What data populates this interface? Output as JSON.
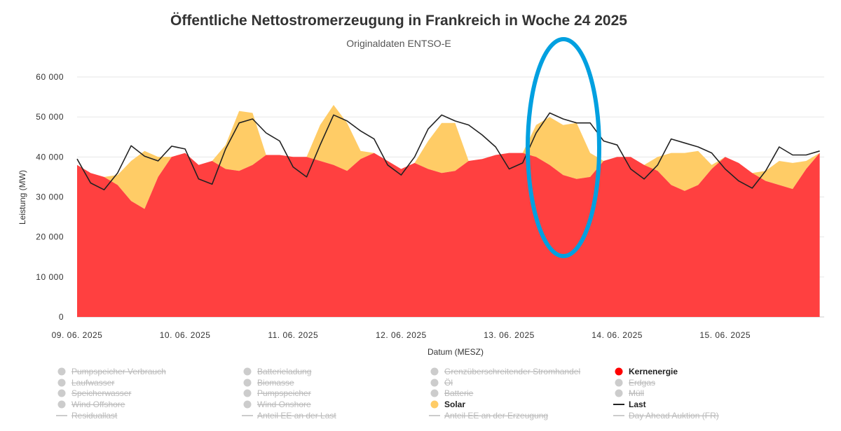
{
  "chart_data": {
    "type": "area",
    "title": "Öffentliche Nettostromerzeugung in Frankreich in Woche 24 2025",
    "subtitle": "Originaldaten ENTSO-E",
    "xlabel": "Datum (MESZ)",
    "ylabel": "Leistung (MW)",
    "ylim": [
      0,
      60000
    ],
    "yticks": [
      0,
      10000,
      20000,
      30000,
      40000,
      50000,
      60000
    ],
    "ytick_labels": [
      "0",
      "10 000",
      "20 000",
      "30 000",
      "40 000",
      "50 000",
      "60 000"
    ],
    "xlim": [
      0,
      166
    ],
    "x_unit": "hours since 09.06.2025 00:00",
    "xticks": [
      0,
      24,
      48,
      72,
      96,
      120,
      144
    ],
    "xtick_labels": [
      "09. 06. 2025",
      "10. 06. 2025",
      "11. 06. 2025",
      "12. 06. 2025",
      "13. 06. 2025",
      "14. 06. 2025",
      "15. 06. 2025"
    ],
    "grid": true,
    "legend_position": "bottom",
    "x": [
      0,
      3,
      6,
      9,
      12,
      15,
      18,
      21,
      24,
      27,
      30,
      33,
      36,
      39,
      42,
      45,
      48,
      51,
      54,
      57,
      60,
      63,
      66,
      69,
      72,
      75,
      78,
      81,
      84,
      87,
      90,
      93,
      96,
      99,
      102,
      105,
      108,
      111,
      114,
      117,
      120,
      123,
      126,
      129,
      132,
      135,
      138,
      141,
      144,
      147,
      150,
      153,
      156,
      159,
      162,
      165
    ],
    "series": [
      {
        "name": "Kernenergie",
        "color": "#ff0000",
        "values": [
          38000,
          36000,
          35000,
          33000,
          29000,
          27000,
          35000,
          40000,
          41000,
          38000,
          39000,
          37000,
          36500,
          38000,
          40500,
          40500,
          40000,
          40000,
          39000,
          38000,
          36500,
          39500,
          41000,
          39000,
          37000,
          38500,
          37000,
          36000,
          36500,
          39000,
          39500,
          40500,
          41000,
          41000,
          40000,
          38000,
          35500,
          34500,
          35000,
          39000,
          40000,
          40000,
          38000,
          36500,
          33000,
          31500,
          33000,
          37000,
          40000,
          38500,
          36000,
          34000,
          33000,
          32000,
          37000,
          41000
        ]
      },
      {
        "name": "Solar",
        "color": "#ffcc66",
        "values": [
          0,
          0,
          0,
          2500,
          10000,
          14500,
          5000,
          0,
          0,
          0,
          0,
          6000,
          15000,
          13000,
          0,
          0,
          0,
          0,
          9000,
          15000,
          12000,
          2000,
          0,
          0,
          0,
          0,
          7000,
          12500,
          12000,
          0,
          0,
          0,
          0,
          0,
          8000,
          12000,
          12500,
          14000,
          6000,
          0,
          0,
          0,
          0,
          3500,
          8000,
          9500,
          8500,
          1000,
          0,
          0,
          0,
          2500,
          6000,
          6500,
          2000,
          0
        ]
      },
      {
        "name": "Last",
        "color": "#222222",
        "values": [
          39500,
          33500,
          31800,
          36000,
          42800,
          40200,
          39000,
          42700,
          42000,
          34500,
          33200,
          42000,
          48500,
          49500,
          46000,
          44000,
          37500,
          35000,
          43000,
          50500,
          49000,
          46500,
          44500,
          38000,
          35500,
          40000,
          47000,
          50500,
          49000,
          48000,
          45500,
          42500,
          37000,
          38500,
          46000,
          51000,
          49500,
          48500,
          48500,
          44000,
          43000,
          37000,
          34500,
          38000,
          44500,
          43500,
          42500,
          41000,
          37000,
          34000,
          32200,
          36500,
          42500,
          40500,
          40500,
          41500
        ]
      }
    ],
    "annotation": {
      "type": "ellipse",
      "color": "#00a0e0"
    },
    "legend": [
      {
        "label": "Pumpspeicher Verbrauch",
        "active": false,
        "marker": "dot"
      },
      {
        "label": "Batterieladung",
        "active": false,
        "marker": "dot"
      },
      {
        "label": "Grenzüberschreitender Stromhandel",
        "active": false,
        "marker": "dot"
      },
      {
        "label": "Kernenergie",
        "active": true,
        "marker": "dot",
        "color": "#ff0000"
      },
      {
        "label": "Laufwasser",
        "active": false,
        "marker": "dot"
      },
      {
        "label": "Biomasse",
        "active": false,
        "marker": "dot"
      },
      {
        "label": "Öl",
        "active": false,
        "marker": "dot"
      },
      {
        "label": "Erdgas",
        "active": false,
        "marker": "dot"
      },
      {
        "label": "Speicherwasser",
        "active": false,
        "marker": "dot"
      },
      {
        "label": "Pumpspeicher",
        "active": false,
        "marker": "dot"
      },
      {
        "label": "Batterie",
        "active": false,
        "marker": "dot"
      },
      {
        "label": "Müll",
        "active": false,
        "marker": "dot"
      },
      {
        "label": "Wind Offshore",
        "active": false,
        "marker": "dot"
      },
      {
        "label": "Wind Onshore",
        "active": false,
        "marker": "dot"
      },
      {
        "label": "Solar",
        "active": true,
        "marker": "dot",
        "color": "#ffcc66"
      },
      {
        "label": "Last",
        "active": true,
        "marker": "line",
        "color": "#222222"
      },
      {
        "label": "Residuallast",
        "active": false,
        "marker": "line"
      },
      {
        "label": "Anteil EE an der Last",
        "active": false,
        "marker": "line"
      },
      {
        "label": "Anteil EE an der Erzeugung",
        "active": false,
        "marker": "line"
      },
      {
        "label": "Day Ahead Auktion (FR)",
        "active": false,
        "marker": "line"
      }
    ],
    "inactive_color": "#cccccc"
  }
}
